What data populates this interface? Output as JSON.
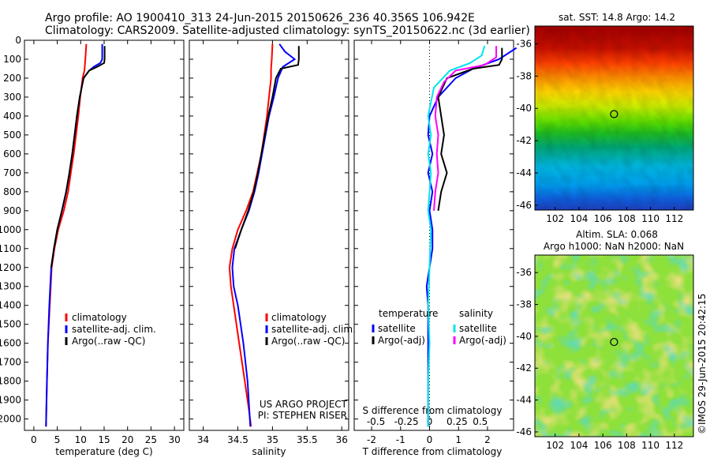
{
  "header": {
    "line1": "Argo profile: AO 1900410_313 24-Jun-2015 20150626_236 40.356S 106.942E",
    "line2": "Climatology: CARS2009. Satellite-adjusted climatology: synTS_20150622.nc (3d earlier)"
  },
  "colors": {
    "climatology": "#ff0000",
    "satellite": "#0000ff",
    "argo": "#000000",
    "sat_salinity": "#00e5ee",
    "argo_salinity": "#ff00ff"
  },
  "chart_data": [
    {
      "type": "line",
      "xlabel": "temperature (deg C)",
      "ylabel": "",
      "xlim": [
        -2,
        32
      ],
      "ylim": [
        2060,
        0
      ],
      "xticks": [
        "0",
        "5",
        "10",
        "15",
        "20",
        "25",
        "30"
      ],
      "xtick_values": [
        0,
        5,
        10,
        15,
        20,
        25,
        30
      ],
      "yticks": [
        "0",
        "100",
        "200",
        "300",
        "400",
        "500",
        "600",
        "700",
        "800",
        "900",
        "1000",
        "1100",
        "1200",
        "1300",
        "1400",
        "1500",
        "1600",
        "1700",
        "1800",
        "1900",
        "2000"
      ],
      "ytick_values": [
        0,
        100,
        200,
        300,
        400,
        500,
        600,
        700,
        800,
        900,
        1000,
        1100,
        1200,
        1300,
        1400,
        1500,
        1600,
        1700,
        1800,
        1900,
        2000
      ],
      "legend": [
        "climatology",
        "satellite-adj. clim.",
        "Argo(..raw -QC)"
      ],
      "series": [
        {
          "name": "climatology",
          "x": [
            11.2,
            11.0,
            10.8,
            10.4,
            9.9,
            9.5,
            9.0,
            8.5,
            7.9,
            7.3,
            6.4,
            5.2,
            4.4,
            3.8,
            3.4,
            3.0,
            2.8,
            2.6
          ],
          "y": [
            20,
            100,
            160,
            200,
            300,
            400,
            500,
            600,
            700,
            800,
            900,
            1000,
            1100,
            1200,
            1400,
            1600,
            1800,
            2040
          ]
        },
        {
          "name": "satellite-adj. clim.",
          "x": [
            14.6,
            14.6,
            14.2,
            12.8,
            11.8,
            10.6,
            9.8,
            9.2,
            8.7,
            8.2,
            7.6,
            6.9,
            6.0,
            5.0,
            4.3,
            3.7,
            3.3,
            3.0,
            2.8,
            2.6
          ],
          "y": [
            20,
            100,
            120,
            140,
            160,
            200,
            300,
            400,
            500,
            600,
            700,
            800,
            900,
            1000,
            1100,
            1200,
            1400,
            1600,
            1800,
            2040
          ]
        },
        {
          "name": "Argo(..raw -QC)",
          "x": [
            15.1,
            15.1,
            15.0,
            13.5,
            11.8,
            10.6,
            9.8,
            9.2,
            8.7,
            8.2,
            7.6,
            6.9,
            6.0,
            5.0,
            4.3,
            3.7
          ],
          "y": [
            30,
            100,
            120,
            140,
            160,
            200,
            300,
            400,
            500,
            600,
            700,
            800,
            900,
            1000,
            1100,
            1200
          ]
        }
      ]
    },
    {
      "type": "line",
      "xlabel": "salinity",
      "ylabel": "",
      "xlim": [
        33.8,
        36.1
      ],
      "ylim": [
        2060,
        0
      ],
      "xticks": [
        "34",
        "34.5",
        "35",
        "35.5",
        "36"
      ],
      "xtick_values": [
        34,
        34.5,
        35,
        35.5,
        36
      ],
      "legend": [
        "climatology",
        "satellite-adj. clim.",
        "Argo(..raw -QC)"
      ],
      "annotation": [
        "US ARGO PROJECT",
        "PI: STEPHEN RISER"
      ],
      "series": [
        {
          "name": "climatology",
          "x": [
            35.0,
            34.99,
            34.98,
            34.98,
            34.95,
            34.92,
            34.88,
            34.84,
            34.78,
            34.72,
            34.62,
            34.5,
            34.42,
            34.38,
            34.4,
            34.44,
            34.52,
            34.6,
            34.66,
            34.69
          ],
          "y": [
            20,
            100,
            150,
            200,
            300,
            400,
            500,
            600,
            700,
            800,
            900,
            1000,
            1100,
            1200,
            1300,
            1400,
            1600,
            1800,
            1950,
            2040
          ]
        },
        {
          "name": "satellite-adj. clim.",
          "x": [
            35.1,
            35.18,
            35.32,
            35.15,
            35.08,
            35.02,
            34.95,
            34.9,
            34.85,
            34.8,
            34.74,
            34.66,
            34.55,
            34.45,
            34.42,
            34.44,
            34.5,
            34.58,
            34.64,
            34.68
          ],
          "y": [
            20,
            60,
            100,
            140,
            200,
            300,
            400,
            500,
            600,
            700,
            800,
            900,
            1000,
            1100,
            1200,
            1300,
            1400,
            1600,
            1800,
            2040
          ]
        },
        {
          "name": "Argo(..raw -QC)",
          "x": [
            35.38,
            35.38,
            35.37,
            35.12,
            35.05,
            35.0,
            34.94,
            34.89,
            34.84,
            34.79,
            34.73,
            34.65,
            34.55,
            34.46
          ],
          "y": [
            30,
            100,
            130,
            150,
            200,
            300,
            400,
            500,
            600,
            700,
            800,
            900,
            1000,
            1100
          ]
        }
      ]
    },
    {
      "type": "line",
      "xlabel": "T difference from climatology",
      "xlabel_top": "S difference from climatology",
      "ylabel": "",
      "xlim": [
        -2.6,
        2.9
      ],
      "ylim": [
        2060,
        0
      ],
      "xticks": [
        "-2",
        "-1",
        "0",
        "1",
        "2"
      ],
      "xtick_values": [
        -2,
        -1,
        0,
        1,
        2
      ],
      "sticks": [
        "-0.5",
        "-0.25",
        "0",
        "0.25",
        "0.5"
      ],
      "stick_positions_T": [
        -1.85,
        -0.8,
        0,
        0.95,
        1.75
      ],
      "legend_groups": [
        {
          "title": "temperature",
          "items": [
            "satellite",
            "Argo(-adj)"
          ]
        },
        {
          "title": "salinity",
          "items": [
            "satellite",
            "Argo(-adj)"
          ]
        }
      ],
      "series": [
        {
          "name": "satellite",
          "group": "temperature",
          "x": [
            3.0,
            2.4,
            1.5,
            0.9,
            0.3,
            0.0,
            -0.05,
            0.1,
            -0.05,
            0.1,
            0.0,
            0.1,
            0.1,
            0.0,
            -0.1,
            -0.05,
            -0.05,
            -0.05,
            -0.05
          ],
          "y": [
            40,
            100,
            150,
            200,
            300,
            400,
            500,
            600,
            700,
            800,
            900,
            1000,
            1100,
            1200,
            1300,
            1400,
            1600,
            1800,
            2040
          ]
        },
        {
          "name": "Argo(-adj)",
          "group": "temperature",
          "x": [
            2.5,
            2.5,
            2.4,
            1.5,
            0.6,
            0.3,
            0.4,
            0.5,
            0.4,
            0.6,
            0.4,
            0.3
          ],
          "y": [
            40,
            100,
            130,
            150,
            200,
            300,
            400,
            500,
            600,
            700,
            800,
            900
          ]
        },
        {
          "name": "satellite",
          "group": "salinity",
          "x": [
            1.9,
            1.8,
            1.4,
            0.7,
            0.15,
            -0.05,
            0.05,
            -0.05,
            0.05,
            0.0,
            -0.05,
            0.05,
            0.0,
            -0.05,
            0.0,
            -0.05,
            -0.05
          ],
          "y": [
            30,
            80,
            120,
            160,
            250,
            400,
            500,
            600,
            700,
            800,
            900,
            1000,
            1200,
            1400,
            1600,
            1800,
            2040
          ]
        },
        {
          "name": "Argo(-adj)",
          "group": "salinity",
          "x": [
            2.3,
            2.3,
            1.9,
            0.9,
            0.5,
            0.25,
            0.2,
            0.3,
            0.25,
            0.3,
            0.2,
            0.15
          ],
          "y": [
            30,
            90,
            130,
            160,
            220,
            300,
            400,
            500,
            600,
            700,
            800,
            900
          ]
        }
      ]
    },
    {
      "type": "heatmap",
      "title": "sat. SST: 14.8 Argo: 14.2",
      "xlim": [
        100.3,
        113.6
      ],
      "ylim": [
        -46.3,
        -34.9
      ],
      "xticks": [
        "102",
        "104",
        "106",
        "108",
        "110",
        "112"
      ],
      "xtick_values": [
        102,
        104,
        106,
        108,
        110,
        112
      ],
      "yticks": [
        "-36",
        "-38",
        "-40",
        "-42",
        "-44",
        "-46"
      ],
      "ytick_values": [
        -36,
        -38,
        -40,
        -42,
        -44,
        -46
      ],
      "marker": {
        "lon": 106.942,
        "lat": -40.356
      }
    },
    {
      "type": "heatmap",
      "title": "Altim. SLA: 0.068",
      "subtitle": "Argo h1000: NaN h2000: NaN",
      "xlim": [
        100.3,
        113.6
      ],
      "ylim": [
        -46.3,
        -34.9
      ],
      "xticks": [
        "102",
        "104",
        "106",
        "108",
        "110",
        "112"
      ],
      "xtick_values": [
        102,
        104,
        106,
        108,
        110,
        112
      ],
      "yticks": [
        "-36",
        "-38",
        "-40",
        "-42",
        "-44",
        "-46"
      ],
      "ytick_values": [
        -36,
        -38,
        -40,
        -42,
        -44,
        -46
      ],
      "marker": {
        "lon": 106.942,
        "lat": -40.356
      }
    }
  ],
  "footer": {
    "credit": "©IMOS 29-Jun-2015 20:42:15"
  }
}
